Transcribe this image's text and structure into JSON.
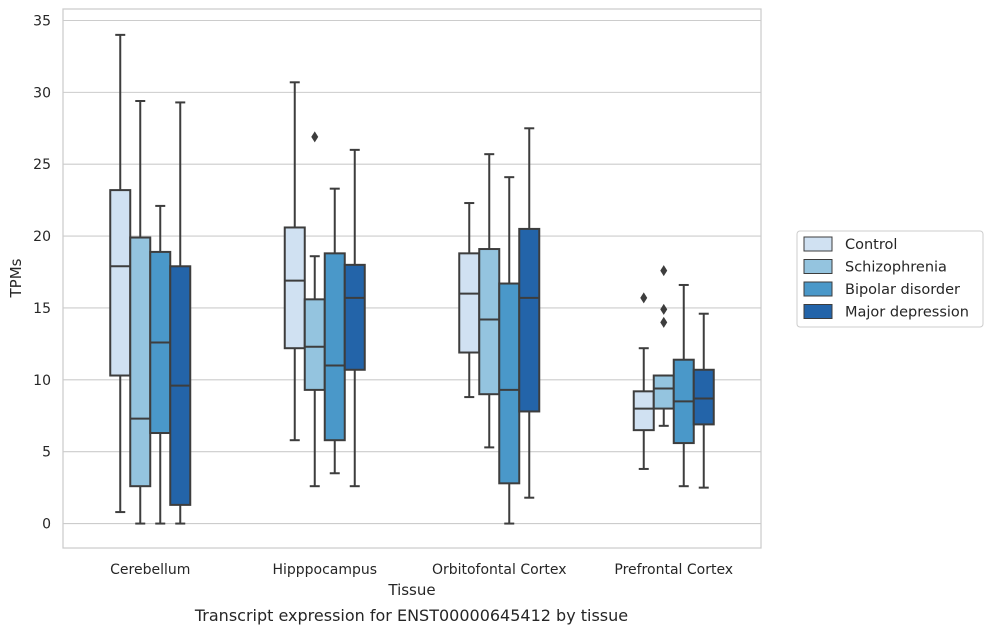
{
  "chart_data": {
    "type": "boxplot",
    "xlabel": "Tissue",
    "ylabel": "TPMs",
    "ylim": [
      -1.7,
      35.8
    ],
    "yticks": [
      0,
      5,
      10,
      15,
      20,
      25,
      30,
      35
    ],
    "grid": true,
    "legend_position": "right",
    "categories": [
      "Cerebellum",
      "Hipppocampus",
      "Orbitofontal Cortex",
      "Prefrontal Cortex"
    ],
    "series": [
      {
        "name": "Control",
        "color": "#d0e1f2",
        "boxes": [
          {
            "whislo": 0.8,
            "q1": 10.3,
            "med": 17.9,
            "q3": 23.2,
            "whishi": 34.0,
            "fliers": []
          },
          {
            "whislo": 5.8,
            "q1": 12.2,
            "med": 16.9,
            "q3": 20.6,
            "whishi": 30.7,
            "fliers": []
          },
          {
            "whislo": 8.8,
            "q1": 11.9,
            "med": 16.0,
            "q3": 18.8,
            "whishi": 22.3,
            "fliers": []
          },
          {
            "whislo": 3.8,
            "q1": 6.5,
            "med": 8.0,
            "q3": 9.2,
            "whishi": 12.2,
            "fliers": [
              15.7
            ]
          }
        ]
      },
      {
        "name": "Schizophrenia",
        "color": "#94c4df",
        "boxes": [
          {
            "whislo": 0.0,
            "q1": 2.6,
            "med": 7.3,
            "q3": 19.9,
            "whishi": 29.4,
            "fliers": []
          },
          {
            "whislo": 2.6,
            "q1": 9.3,
            "med": 12.3,
            "q3": 15.6,
            "whishi": 18.6,
            "fliers": [
              26.9
            ]
          },
          {
            "whislo": 5.3,
            "q1": 9.0,
            "med": 14.2,
            "q3": 19.1,
            "whishi": 25.7,
            "fliers": []
          },
          {
            "whislo": 6.8,
            "q1": 8.0,
            "med": 9.4,
            "q3": 10.3,
            "whishi": 10.3,
            "fliers": [
              14.0,
              14.9,
              17.6
            ]
          }
        ]
      },
      {
        "name": "Bipolar disorder",
        "color": "#4a98c9",
        "boxes": [
          {
            "whislo": 0.0,
            "q1": 6.3,
            "med": 12.6,
            "q3": 18.9,
            "whishi": 22.1,
            "fliers": []
          },
          {
            "whislo": 3.5,
            "q1": 5.8,
            "med": 11.0,
            "q3": 18.8,
            "whishi": 23.3,
            "fliers": []
          },
          {
            "whislo": 0.0,
            "q1": 2.8,
            "med": 9.3,
            "q3": 16.7,
            "whishi": 24.1,
            "fliers": []
          },
          {
            "whislo": 2.6,
            "q1": 5.6,
            "med": 8.5,
            "q3": 11.4,
            "whishi": 16.6,
            "fliers": []
          }
        ]
      },
      {
        "name": "Major depression",
        "color": "#2364a9",
        "boxes": [
          {
            "whislo": 0.0,
            "q1": 1.3,
            "med": 9.6,
            "q3": 17.9,
            "whishi": 29.3,
            "fliers": []
          },
          {
            "whislo": 2.6,
            "q1": 10.7,
            "med": 15.7,
            "q3": 18.0,
            "whishi": 26.0,
            "fliers": []
          },
          {
            "whislo": 1.8,
            "q1": 7.8,
            "med": 15.7,
            "q3": 20.5,
            "whishi": 27.5,
            "fliers": []
          },
          {
            "whislo": 2.5,
            "q1": 6.9,
            "med": 8.7,
            "q3": 10.7,
            "whishi": 14.6,
            "fliers": []
          }
        ]
      }
    ]
  },
  "caption": "Transcript expression for ENST00000645412 by tissue"
}
